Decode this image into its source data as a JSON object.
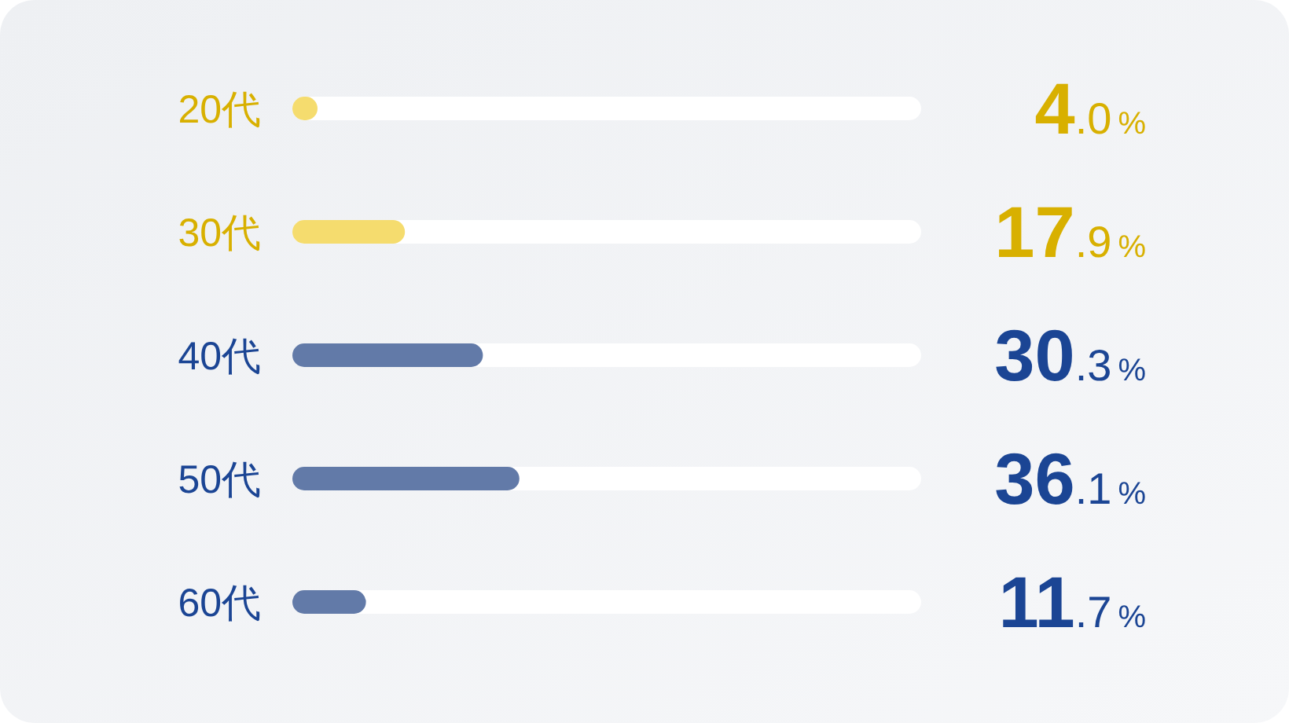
{
  "chart_data": {
    "type": "bar",
    "orientation": "horizontal",
    "categories": [
      "20代",
      "30代",
      "40代",
      "50代",
      "60代"
    ],
    "values": [
      4.0,
      17.9,
      30.3,
      36.1,
      11.7
    ],
    "value_labels": [
      "4.0%",
      "17.9%",
      "30.3%",
      "36.1%",
      "11.7%"
    ],
    "colors": [
      "#f5dc6e",
      "#f5dc6e",
      "#627aa8",
      "#627aa8",
      "#627aa8"
    ],
    "xlim": [
      0,
      100
    ]
  }
}
